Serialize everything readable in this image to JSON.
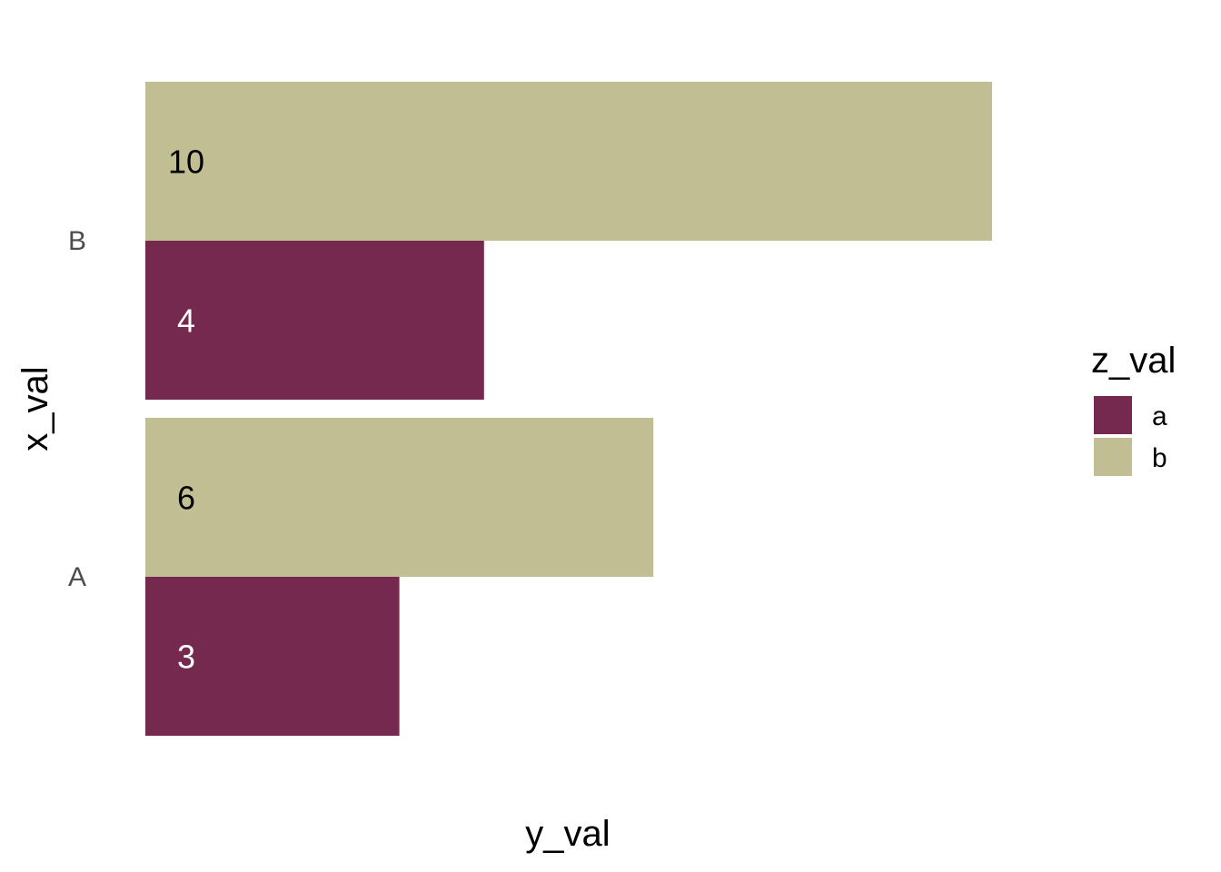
{
  "chart_data": {
    "type": "bar",
    "orientation": "horizontal",
    "position": "dodge",
    "categories": [
      "A",
      "B"
    ],
    "series": [
      {
        "name": "a",
        "values": [
          3,
          4
        ],
        "color": "#76294E",
        "label_color": "#FFFFFF"
      },
      {
        "name": "b",
        "values": [
          6,
          10
        ],
        "color": "#C2BE93",
        "label_color": "#000000"
      }
    ],
    "xlabel": "y_val",
    "ylabel": "x_val",
    "xlim": [
      0,
      10
    ],
    "grid": false,
    "legend": {
      "title": "z_val",
      "placement": "right",
      "entries": [
        "a",
        "b"
      ]
    },
    "data_labels": true
  }
}
